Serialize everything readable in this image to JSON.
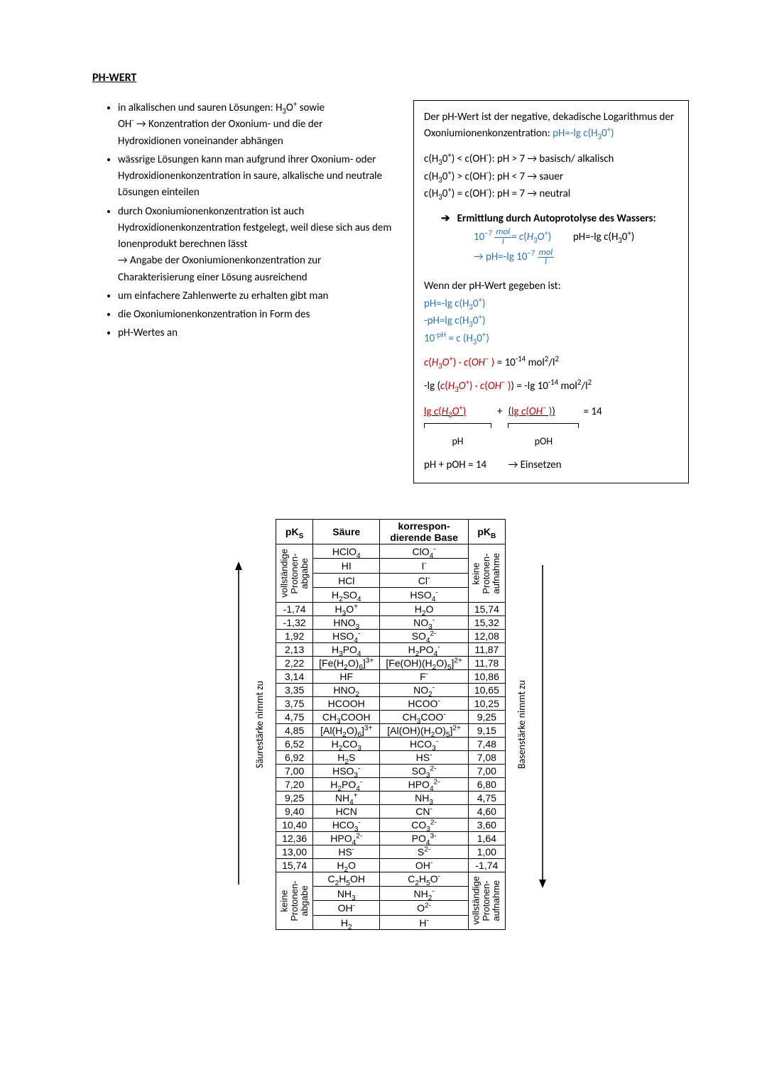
{
  "title": "PH-WERT",
  "bullets": [
    "in alkalischen und sauren Lösungen: H₃O⁺ sowie OH⁻ → Konzentration der Oxonium- und die der Hydroxidionen voneinander abhängen",
    "wässrige Lösungen kann man aufgrund ihrer Oxonium- oder Hydroxidionenkonzentration in saure, alkalische und neutrale Lösungen einteilen",
    "durch Oxoniumionenkonzentration ist auch Hydroxidionenkonzentration festgelegt, weil diese sich aus dem Ionenprodukt berechnen lässt → Angabe der Oxoniumionenkonzentration zur Charakterisierung einer Lösung ausreichend",
    "um einfachere Zahlenwerte zu erhalten gibt man",
    "die Oxoniumionenkonzentration in Form des",
    "pH-Wertes an"
  ],
  "box": {
    "intro": "Der pH-Wert ist der negative, dekadische Logarithmus der Oxoniumionenkonzentration: ",
    "formula_def": "pH=-lg c(H₃0⁺)",
    "rel1": "c(H₃0⁺) < c(OH⁻): pH > 7 → basisch/ alkalisch",
    "rel2": "c(H₃0⁺) > c(OH⁻): pH < 7 → sauer",
    "rel3": "c(H₃0⁺) = c(OH⁻): pH = 7 → neutral",
    "auto_title": "Ermittlung durch Autoprotolyse des Wassers:",
    "auto_left": "10⁻⁷ mol/l = c(H₃O⁺)",
    "auto_right": "pH=-lg c(H₃0⁺)",
    "auto_result": "→ pH=-lg 10⁻⁷ mol/l",
    "given_title": "Wenn der pH-Wert gegeben ist:",
    "g1": "pH=-lg c(H₃0⁺)",
    "g2": "-pH=lg c(H₃0⁺)",
    "g3": "10⁻ᵖᴴ = c (H₃0⁺)",
    "p1": "c(H₃O⁺) · c(OH⁻ ) = 10⁻¹⁴ mol²/l²",
    "p2": "-lg (c(H₃O⁺) · c(OH⁻ )) = -lg 10⁻¹⁴ mol²/l²",
    "p3a": "lg c(H₃O⁺)",
    "p3b": "lg c(OH⁻ )",
    "p3eq": "= 14",
    "lbl_ph": "pH",
    "lbl_poh": "pOH",
    "sum": "pH + pOH = 14",
    "sum_arrow": "→ Einsetzen"
  },
  "table": {
    "headers": [
      "pKS",
      "Säure",
      "korrespon-\ndierende Base",
      "pKB"
    ],
    "left_label": "Säurestärke nimmt zu",
    "right_label": "Basenstärke nimmt zu",
    "top_group_left": "vollständige\nProtonen-\nabgabe",
    "top_group_right": "keine\nProtonen-\naufnahme",
    "bot_group_left": "keine\nProtonen-\nabgabe",
    "bot_group_right": "vollständige\nProtonen-\naufnahme",
    "top_rows": [
      [
        "HClO₄",
        "ClO₄⁻"
      ],
      [
        "HI",
        "I⁻"
      ],
      [
        "HCl",
        "Cl⁻"
      ],
      [
        "H₂SO₄",
        "HSO₄⁻"
      ]
    ],
    "rows": [
      [
        "-1,74",
        "H₃O⁺",
        "H₂O",
        "15,74"
      ],
      [
        "-1,32",
        "HNO₃",
        "NO₃⁻",
        "15,32"
      ],
      [
        "1,92",
        "HSO₄⁻",
        "SO₄²⁻",
        "12,08"
      ],
      [
        "2,13",
        "H₃PO₄",
        "H₂PO₄⁻",
        "11,87"
      ],
      [
        "2,22",
        "[Fe(H₂O)₆]³⁺",
        "[Fe(OH)(H₂O)₅]²⁺",
        "11,78"
      ],
      [
        "3,14",
        "HF",
        "F⁻",
        "10,86"
      ],
      [
        "3,35",
        "HNO₂",
        "NO₂⁻",
        "10,65"
      ],
      [
        "3,75",
        "HCOOH",
        "HCOO⁻",
        "10,25"
      ],
      [
        "4,75",
        "CH₃COOH",
        "CH₃COO⁻",
        "9,25"
      ],
      [
        "4,85",
        "[Al(H₂O)₆]³⁺",
        "[Al(OH)(H₂O)₅]²⁺",
        "9,15"
      ],
      [
        "6,52",
        "H₂CO₃",
        "HCO₃⁻",
        "7,48"
      ],
      [
        "6,92",
        "H₂S",
        "HS⁻",
        "7,08"
      ],
      [
        "7,00",
        "HSO₃⁻",
        "SO₃²⁻",
        "7,00"
      ],
      [
        "7,20",
        "H₂PO₄⁻",
        "HPO₄²⁻",
        "6,80"
      ],
      [
        "9,25",
        "NH₄⁺",
        "NH₃",
        "4,75"
      ],
      [
        "9,40",
        "HCN",
        "CN⁻",
        "4,60"
      ],
      [
        "10,40",
        "HCO₃⁻",
        "CO₃²⁻",
        "3,60"
      ],
      [
        "12,36",
        "HPO₄²⁻",
        "PO₄³⁻",
        "1,64"
      ],
      [
        "13,00",
        "HS⁻",
        "S²⁻",
        "1,00"
      ],
      [
        "15,74",
        "H₂O",
        "OH⁻",
        "-1,74"
      ]
    ],
    "bot_rows": [
      [
        "C₂H₅OH",
        "C₂H₅O⁻"
      ],
      [
        "NH₃",
        "NH₂⁻"
      ],
      [
        "OH⁻",
        "O²⁻"
      ],
      [
        "H₂",
        "H⁻"
      ]
    ]
  },
  "colors": {
    "text": "#000000",
    "blue": "#2e74b5",
    "red": "#c00000",
    "bg": "#ffffff",
    "border": "#000000"
  }
}
